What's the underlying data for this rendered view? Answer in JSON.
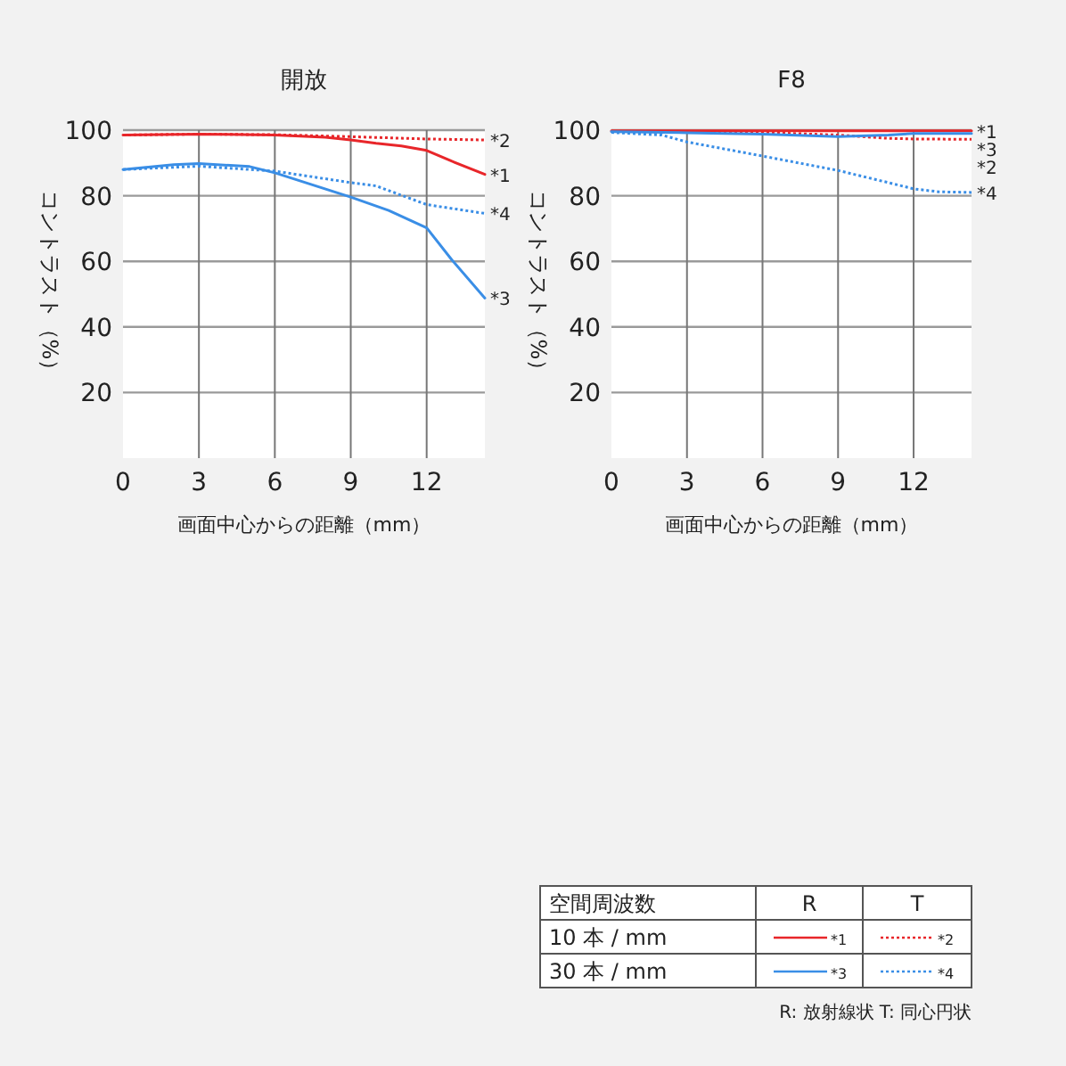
{
  "chart_data": [
    {
      "type": "line",
      "title": "開放",
      "xlabel": "画面中心からの距離（mm）",
      "ylabel": "コントラスト（%）",
      "xlim": [
        0,
        14.3
      ],
      "ylim": [
        0,
        100
      ],
      "xticks": [
        0,
        3,
        6,
        9,
        12
      ],
      "yticks": [
        20,
        40,
        60,
        80,
        100
      ],
      "grid": true,
      "series": [
        {
          "name": "*1",
          "color": "#e8262a",
          "line_style": "solid",
          "x": [
            0,
            3,
            6,
            8,
            9,
            10,
            11,
            12,
            13,
            14.3
          ],
          "values": [
            98.5,
            98.8,
            98.5,
            97.8,
            97,
            96,
            95.2,
            93.8,
            90.5,
            86.5
          ]
        },
        {
          "name": "*2",
          "color": "#e8262a",
          "line_style": "dotted",
          "x": [
            0,
            3,
            6,
            9,
            12,
            14.3
          ],
          "values": [
            98.5,
            98.8,
            98.6,
            98,
            97.3,
            97
          ]
        },
        {
          "name": "*3",
          "color": "#3a8ee6",
          "line_style": "solid",
          "x": [
            0,
            2,
            3,
            5,
            6,
            9,
            10.5,
            12,
            13,
            14.3
          ],
          "values": [
            88,
            89.5,
            89.8,
            88.9,
            87,
            79.6,
            75.5,
            70.2,
            60.4,
            48.8
          ]
        },
        {
          "name": "*4",
          "color": "#3a8ee6",
          "line_style": "dotted",
          "x": [
            0,
            3,
            6,
            9,
            10,
            12,
            14.3
          ],
          "values": [
            88,
            89,
            87.5,
            84,
            83,
            77.3,
            74.6
          ]
        }
      ]
    },
    {
      "type": "line",
      "title": "F8",
      "xlabel": "画面中心からの距離（mm）",
      "ylabel": "コントラスト（%）",
      "xlim": [
        0,
        14.3
      ],
      "ylim": [
        0,
        100
      ],
      "xticks": [
        0,
        3,
        6,
        9,
        12
      ],
      "yticks": [
        20,
        40,
        60,
        80,
        100
      ],
      "grid": true,
      "series": [
        {
          "name": "*1",
          "color": "#e8262a",
          "line_style": "solid",
          "x": [
            0,
            6,
            12,
            14.3
          ],
          "values": [
            99.8,
            99.8,
            99.8,
            99.8
          ]
        },
        {
          "name": "*2",
          "color": "#e8262a",
          "line_style": "dotted",
          "x": [
            0,
            6,
            9,
            11,
            12,
            14.3
          ],
          "values": [
            99.5,
            99.3,
            98.5,
            97.5,
            97.3,
            97.2
          ]
        },
        {
          "name": "*3",
          "color": "#3a8ee6",
          "line_style": "solid",
          "x": [
            0,
            3,
            6,
            9,
            11,
            12,
            14.3
          ],
          "values": [
            99.5,
            99.2,
            98.8,
            98,
            98.5,
            99,
            99
          ]
        },
        {
          "name": "*4",
          "color": "#3a8ee6",
          "line_style": "dotted",
          "x": [
            0,
            2,
            3,
            6,
            9,
            11,
            12,
            13,
            14.3
          ],
          "values": [
            99.3,
            98.5,
            96.4,
            92.1,
            87.7,
            84,
            82.1,
            81.2,
            81
          ]
        }
      ]
    },
    {
      "type": "other",
      "annotations": [
        "空間周波数",
        "R",
        "T",
        "10 本 / mm",
        "30 本 / mm",
        "R: 放射線状  T: 同心円状"
      ],
      "series": [
        {
          "name": "*1",
          "color": "#e8262a",
          "line_style": "solid"
        },
        {
          "name": "*2",
          "color": "#e8262a",
          "line_style": "dotted"
        },
        {
          "name": "*3",
          "color": "#3a8ee6",
          "line_style": "solid"
        },
        {
          "name": "*4",
          "color": "#3a8ee6",
          "line_style": "dotted"
        }
      ]
    }
  ]
}
